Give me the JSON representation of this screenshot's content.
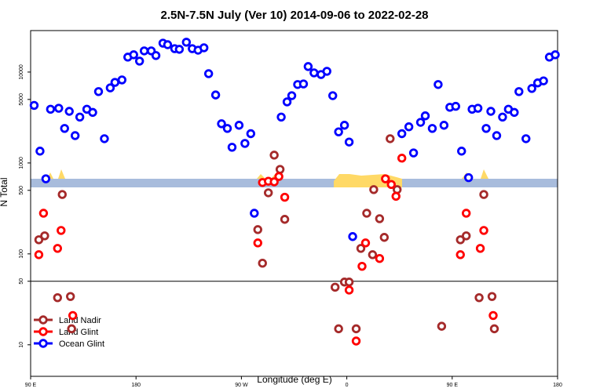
{
  "chart_data": {
    "type": "scatter",
    "title": "2.5N-7.5N July (Ver 10)   2014-09-06 to 2022-02-28",
    "x_label": "Longitude (deg E)",
    "y_label": "N Total",
    "xlim": [
      90,
      540
    ],
    "xticks": [
      {
        "value": 90,
        "label": "90 E"
      },
      180,
      {
        "value": 270,
        "label": "90 W"
      },
      {
        "value": 360,
        "label": "0"
      },
      {
        "value": 450,
        "label": "90 E"
      },
      {
        "value": 540,
        "label": "180"
      }
    ],
    "ylim": [
      4.5,
      28600
    ],
    "log_y": true,
    "yticks": [
      10,
      50,
      100,
      500,
      1000,
      5000,
      10000
    ],
    "legend": "bottom-left",
    "series": [
      {
        "name": "Land Nadir",
        "color": "#a52a2a",
        "x": [
          97,
          102,
          117,
          113,
          124,
          125,
          298,
          303,
          293,
          284,
          288,
          307,
          397,
          383,
          403,
          388,
          377,
          392,
          382,
          372,
          350,
          358,
          362,
          353,
          368,
          457,
          462,
          477,
          473,
          484,
          486,
          441
        ],
        "values": [
          143,
          158,
          450,
          33,
          34,
          15,
          1220,
          850,
          470,
          185,
          79,
          240,
          1850,
          510,
          510,
          244,
          280,
          152,
          98,
          115,
          43,
          49,
          49,
          15,
          15,
          143,
          158,
          450,
          33,
          34,
          15,
          16
        ]
      },
      {
        "name": "Land Glint",
        "color": "#ff0000",
        "x": [
          97,
          101,
          113,
          116,
          126,
          288,
          293,
          298,
          302,
          307,
          284,
          407,
          393,
          398,
          402,
          376,
          373,
          388,
          362,
          368,
          457,
          462,
          474,
          477,
          485
        ],
        "values": [
          98,
          280,
          115,
          181,
          21,
          610,
          630,
          620,
          710,
          420,
          132,
          1130,
          670,
          580,
          430,
          132,
          73,
          89,
          40,
          11,
          98,
          280,
          115,
          181,
          21
        ],
        "value_labels": null
      },
      {
        "name": "Ocean Glint",
        "color": "#0000ff",
        "x": [
          93,
          98,
          103,
          107,
          114,
          119,
          123,
          128,
          132,
          138,
          143,
          148,
          153,
          158,
          162,
          168,
          173,
          178,
          183,
          187,
          193,
          197,
          203,
          207,
          213,
          217,
          223,
          228,
          233,
          238,
          242,
          248,
          253,
          258,
          262,
          268,
          273,
          278,
          281,
          304,
          309,
          313,
          318,
          323,
          327,
          332,
          338,
          343,
          348,
          353,
          358,
          362,
          365,
          407,
          413,
          417,
          423,
          427,
          433,
          438,
          443,
          448,
          453,
          458,
          464,
          467,
          472,
          479,
          483,
          488,
          493,
          498,
          503,
          507,
          513,
          518,
          523,
          528,
          533,
          538
        ],
        "values": [
          4300,
          1350,
          670,
          3900,
          4000,
          2400,
          3700,
          2000,
          3200,
          3900,
          3600,
          6100,
          1850,
          6700,
          7700,
          8200,
          14600,
          15500,
          13200,
          17100,
          17100,
          15200,
          20800,
          20000,
          18100,
          17800,
          21300,
          18100,
          17400,
          18500,
          9600,
          5600,
          2700,
          2400,
          1490,
          2600,
          1640,
          2100,
          280,
          3200,
          4700,
          5500,
          7300,
          7400,
          11500,
          9800,
          9400,
          10200,
          5500,
          2200,
          2600,
          1700,
          155,
          2100,
          2500,
          1290,
          2800,
          3300,
          2400,
          7300,
          2600,
          4100,
          4200,
          1350,
          690,
          3900,
          4000,
          2400,
          3700,
          2000,
          3200,
          3900,
          3600,
          6100,
          1850,
          6600,
          7600,
          8000,
          14600,
          15500
        ]
      }
    ]
  }
}
